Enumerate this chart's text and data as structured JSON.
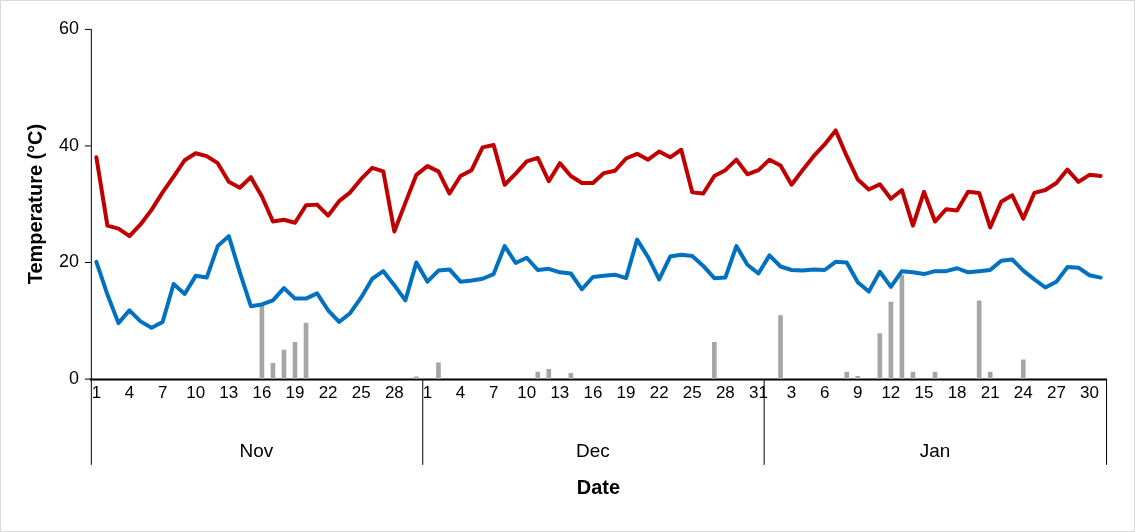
{
  "chart_data": {
    "type": "line",
    "ylabel": "Temperature (°C)",
    "xlabel": "Date",
    "categories": [
      "1",
      null,
      null,
      "4",
      null,
      null,
      "7",
      null,
      null,
      "10",
      null,
      null,
      "13",
      null,
      null,
      "16",
      null,
      null,
      "19",
      null,
      null,
      "22",
      null,
      null,
      "25",
      null,
      null,
      "28",
      null,
      null,
      "1",
      null,
      null,
      "4",
      null,
      null,
      "7",
      null,
      null,
      "10",
      null,
      null,
      "13",
      null,
      null,
      "16",
      null,
      null,
      "19",
      null,
      null,
      "22",
      null,
      null,
      "25",
      null,
      null,
      "28",
      null,
      null,
      "31",
      null,
      null,
      "3",
      null,
      null,
      "6",
      null,
      null,
      "9",
      null,
      null,
      "12",
      null,
      null,
      "15",
      null,
      null,
      "18",
      null,
      null,
      "21",
      null,
      null,
      "24",
      null,
      null,
      "27",
      null,
      null,
      "30",
      null
    ],
    "series": [
      {
        "type": "bar",
        "color": "#a6a6a6",
        "values": [
          null,
          null,
          null,
          null,
          null,
          null,
          null,
          null,
          null,
          null,
          null,
          null,
          null,
          null,
          null,
          13,
          2.7,
          5,
          6.3,
          9.6,
          null,
          null,
          null,
          null,
          null,
          null,
          null,
          null,
          null,
          0.4,
          null,
          2.8,
          null,
          null,
          null,
          null,
          null,
          null,
          null,
          null,
          1.2,
          1.7,
          null,
          1,
          null,
          null,
          null,
          null,
          null,
          null,
          null,
          null,
          null,
          null,
          null,
          null,
          6.3,
          null,
          null,
          null,
          null,
          null,
          10.9,
          null,
          null,
          null,
          null,
          null,
          1.2,
          0.5,
          null,
          7.8,
          13.2,
          17.8,
          1.2,
          null,
          1.2,
          null,
          null,
          null,
          13.4,
          1.2,
          null,
          null,
          3.3,
          null,
          null,
          null,
          null,
          null,
          null,
          null
        ]
      },
      {
        "color": "#c00000",
        "values": [
          38,
          26.3,
          25.8,
          24.5,
          26.5,
          29,
          32,
          34.7,
          37.5,
          38.7,
          38.2,
          37,
          33.8,
          32.8,
          34.6,
          31.3,
          27,
          27.3,
          26.8,
          29.8,
          29.9,
          28,
          30.5,
          32,
          34.3,
          36.2,
          35.6,
          25.3,
          30.2,
          35,
          36.5,
          35.6,
          31.8,
          34.8,
          35.8,
          39.7,
          40.1,
          33.3,
          35.2,
          37.3,
          37.9,
          33.9,
          37,
          34.8,
          33.6,
          33.6,
          35.3,
          35.7,
          37.8,
          38.6,
          37.6,
          39,
          38,
          39.3,
          32,
          31.8,
          34.8,
          35.8,
          37.6,
          35.1,
          35.8,
          37.6,
          36.6,
          33.3,
          35.8,
          38.2,
          40.2,
          42.6,
          38.2,
          34.2,
          32.5,
          33.4,
          30.9,
          32.4,
          26.3,
          32.1,
          27,
          29.1,
          28.9,
          32.1,
          31.9,
          26,
          30.4,
          31.5,
          27.5,
          31.9,
          32.4,
          33.6,
          35.9,
          33.8,
          35,
          34.8
        ]
      },
      {
        "color": "#0070c0",
        "values": [
          20.1,
          14.5,
          9.6,
          11.8,
          9.9,
          8.8,
          9.8,
          16.3,
          14.6,
          17.7,
          17.4,
          22.8,
          24.5,
          18.3,
          12.5,
          12.8,
          13.5,
          15.6,
          13.8,
          13.8,
          14.7,
          11.8,
          9.8,
          11.3,
          14,
          17.2,
          18.5,
          16.1,
          13.5,
          20,
          16.7,
          18.6,
          18.8,
          16.7,
          16.9,
          17.2,
          18,
          22.8,
          19.9,
          20.8,
          18.7,
          18.9,
          18.3,
          18.1,
          15.4,
          17.5,
          17.7,
          17.9,
          17.3,
          23.9,
          20.9,
          17.1,
          21,
          21.3,
          21.1,
          19.4,
          17.3,
          17.4,
          22.8,
          19.6,
          18.1,
          21.2,
          19.3,
          18.7,
          18.6,
          18.8,
          18.7,
          20.1,
          20,
          16.6,
          15,
          18.4,
          15.8,
          18.5,
          18.3,
          18,
          18.5,
          18.5,
          19,
          18.3,
          18.5,
          18.7,
          20.3,
          20.5,
          18.6,
          17.1,
          15.7,
          16.7,
          19.2,
          19.1,
          17.8,
          17.4
        ]
      }
    ],
    "ylim": [
      0,
      60
    ],
    "yticks": [
      0,
      20,
      40,
      60
    ],
    "annotations": [
      "Nov",
      "Dec",
      "Jan"
    ],
    "grid": false,
    "legend": false,
    "marker": "none",
    "line_style": "solid"
  }
}
